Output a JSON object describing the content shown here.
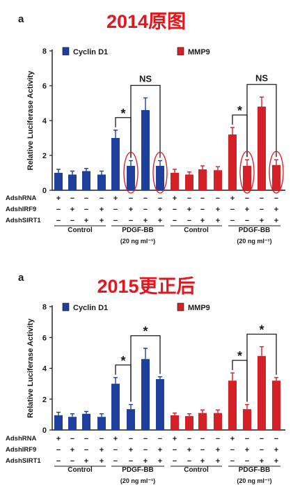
{
  "colors": {
    "blue": "#1f3f9c",
    "red": "#d42027",
    "title": "#e8141b",
    "circle": "#e0141b",
    "text": "#1a1a1a"
  },
  "chart_data": [
    {
      "type": "bar",
      "panel_letter": "a",
      "title": "2014原图",
      "ylabel": "Relative Luciferase  Activity",
      "ylim": [
        0,
        8
      ],
      "yticks": [
        "0",
        "2",
        "4",
        "6",
        "8"
      ],
      "legend": [
        {
          "name": "Cyclin D1",
          "color": "#1f3f9c"
        },
        {
          "name": "MMP9",
          "color": "#d42027"
        }
      ],
      "series": [
        {
          "name": "Cyclin D1",
          "color": "#1f3f9c",
          "values": [
            1.0,
            0.9,
            1.1,
            0.9,
            3.0,
            1.4,
            4.6,
            1.4
          ],
          "errors": [
            0.2,
            0.2,
            0.15,
            0.2,
            0.45,
            0.3,
            0.7,
            0.3
          ]
        },
        {
          "name": "MMP9",
          "color": "#d42027",
          "values": [
            1.0,
            0.9,
            1.2,
            1.15,
            3.2,
            1.4,
            4.8,
            1.45
          ],
          "errors": [
            0.2,
            0.15,
            0.2,
            0.2,
            0.4,
            0.35,
            0.55,
            0.3
          ]
        }
      ],
      "row_labels": [
        "AdshRNA",
        "AdshIRF9",
        "AdshSIRT1"
      ],
      "row_signs": [
        [
          "+",
          "−",
          "−",
          "−",
          "+",
          "−",
          "−",
          "−"
        ],
        [
          "−",
          "+",
          "−",
          "+",
          "−",
          "+",
          "−",
          "+"
        ],
        [
          "−",
          "−",
          "+",
          "+",
          "−",
          "−",
          "+",
          "+"
        ]
      ],
      "group_labels": [
        "Control",
        "PDGF-BB"
      ],
      "group_sublabel": "(20 ng ml⁻¹)",
      "annotations": [
        {
          "series": 0,
          "from": 4,
          "to": 5,
          "text": "*"
        },
        {
          "series": 0,
          "from": 5,
          "to": 7,
          "text": "NS"
        },
        {
          "series": 1,
          "from": 4,
          "to": 5,
          "text": "*"
        },
        {
          "series": 1,
          "from": 5,
          "to": 7,
          "text": "NS"
        }
      ],
      "circled": [
        [
          0,
          5
        ],
        [
          0,
          7
        ],
        [
          1,
          5
        ],
        [
          1,
          7
        ]
      ]
    },
    {
      "type": "bar",
      "panel_letter": "a",
      "title": "2015更正后",
      "ylabel": "Relative Luciferase  Activity",
      "ylim": [
        0,
        8
      ],
      "yticks": [
        "0",
        "2",
        "4",
        "6",
        "8"
      ],
      "legend": [
        {
          "name": "Cyclin D1",
          "color": "#1f3f9c"
        },
        {
          "name": "MMP9",
          "color": "#d42027"
        }
      ],
      "series": [
        {
          "name": "Cyclin D1",
          "color": "#1f3f9c",
          "values": [
            0.95,
            0.85,
            1.05,
            0.85,
            3.0,
            1.35,
            4.6,
            3.3
          ],
          "errors": [
            0.2,
            0.2,
            0.15,
            0.2,
            0.4,
            0.3,
            0.7,
            0.15
          ]
        },
        {
          "name": "MMP9",
          "color": "#d42027",
          "values": [
            0.95,
            0.9,
            1.1,
            1.1,
            3.2,
            1.35,
            4.8,
            3.2
          ],
          "errors": [
            0.15,
            0.15,
            0.2,
            0.2,
            0.5,
            0.3,
            0.6,
            0.2
          ]
        }
      ],
      "row_labels": [
        "AdshRNA",
        "AdshIRF9",
        "AdshSIRT1"
      ],
      "row_signs": [
        [
          "+",
          "−",
          "−",
          "−",
          "+",
          "−",
          "−",
          "−"
        ],
        [
          "−",
          "+",
          "−",
          "+",
          "−",
          "+",
          "−",
          "+"
        ],
        [
          "−",
          "−",
          "+",
          "+",
          "−",
          "−",
          "+",
          "+"
        ]
      ],
      "group_labels": [
        "Control",
        "PDGF-BB"
      ],
      "group_sublabel": "(20 ng ml⁻¹)",
      "annotations": [
        {
          "series": 0,
          "from": 4,
          "to": 5,
          "text": "*"
        },
        {
          "series": 0,
          "from": 5,
          "to": 7,
          "text": "*"
        },
        {
          "series": 1,
          "from": 4,
          "to": 5,
          "text": "*"
        },
        {
          "series": 1,
          "from": 5,
          "to": 7,
          "text": "*"
        }
      ],
      "circled": []
    }
  ]
}
